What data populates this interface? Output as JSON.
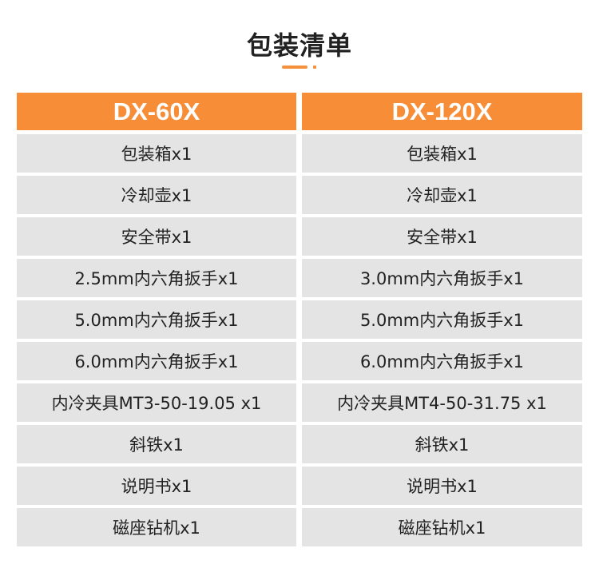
{
  "title": "包装清单",
  "accent_color": "#f78d37",
  "columns": [
    "DX-60X",
    "DX-120X"
  ],
  "rows": [
    [
      "包装箱x1",
      "包装箱x1"
    ],
    [
      "冷却壶x1",
      "冷却壶x1"
    ],
    [
      "安全带x1",
      "安全带x1"
    ],
    [
      "2.5mm内六角扳手x1",
      "3.0mm内六角扳手x1"
    ],
    [
      "5.0mm内六角扳手x1",
      "5.0mm内六角扳手x1"
    ],
    [
      "6.0mm内六角扳手x1",
      "6.0mm内六角扳手x1"
    ],
    [
      "内冷夹具MT3-50-19.05 x1",
      "内冷夹具MT4-50-31.75 x1"
    ],
    [
      "斜铁x1",
      "斜铁x1"
    ],
    [
      "说明书x1",
      "说明书x1"
    ],
    [
      "磁座钻机x1",
      "磁座钻机x1"
    ]
  ]
}
